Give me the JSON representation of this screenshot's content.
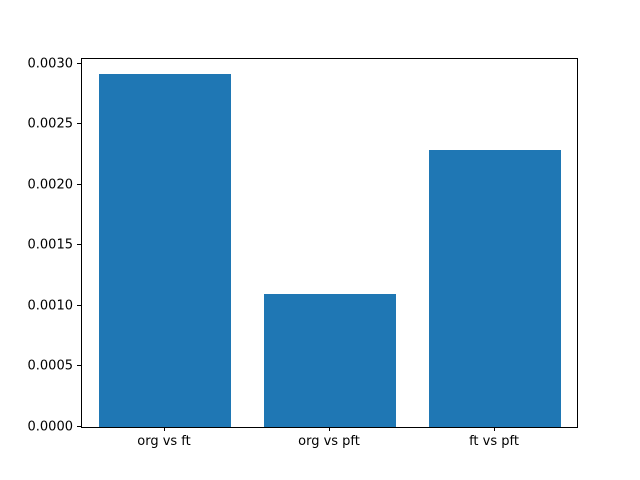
{
  "chart_data": {
    "type": "bar",
    "title": "",
    "xlabel": "",
    "ylabel": "",
    "categories": [
      "org vs ft",
      "org vs pft",
      "ft vs pft"
    ],
    "values": [
      0.00292,
      0.0011,
      0.00229
    ],
    "ylim": [
      0,
      0.003041
    ],
    "ytick_labels": [
      "0.0000",
      "0.0005",
      "0.0010",
      "0.0015",
      "0.0020",
      "0.0025",
      "0.0030"
    ],
    "grid": false,
    "legend": "none",
    "bar_color": "#1f77b4",
    "axis_color": "#000000",
    "bar_width_fraction": 0.8
  }
}
